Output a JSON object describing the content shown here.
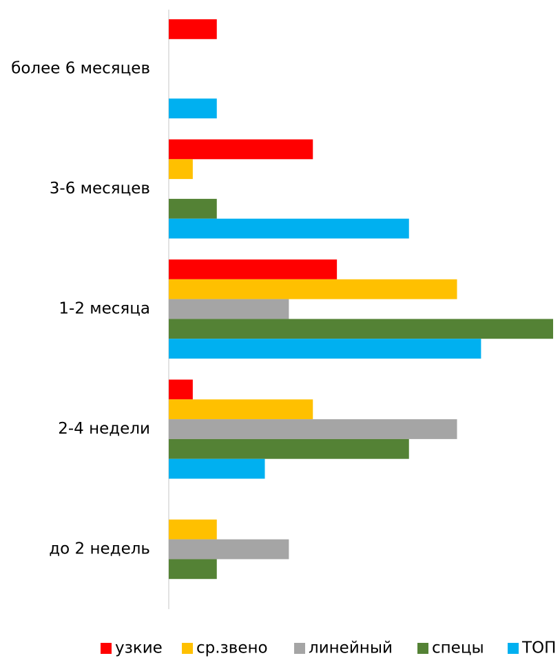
{
  "chart_data": {
    "type": "bar",
    "orientation": "horizontal",
    "categories": [
      "более 6 месяцев",
      "3-6 месяцев",
      "1-2 месяца",
      "2-4 недели",
      "до 2 недель"
    ],
    "series": [
      {
        "name": "узкие",
        "color": "#ff0000",
        "values": [
          1,
          3,
          3.5,
          0.5,
          0
        ]
      },
      {
        "name": "ср.звено",
        "color": "#ffc000",
        "values": [
          0,
          0.5,
          6,
          3,
          1
        ]
      },
      {
        "name": "линейный",
        "color": "#a5a5a5",
        "values": [
          0,
          0,
          2.5,
          6,
          2.5
        ]
      },
      {
        "name": "спецы",
        "color": "#548235",
        "values": [
          0,
          1,
          8,
          5,
          1
        ]
      },
      {
        "name": "ТОП",
        "color": "#00b0f0",
        "values": [
          1,
          5,
          6.5,
          2,
          0
        ]
      }
    ],
    "xlim": [
      0,
      8
    ],
    "grid": false,
    "legend_position": "bottom",
    "title": "",
    "xlabel": "",
    "ylabel": ""
  }
}
